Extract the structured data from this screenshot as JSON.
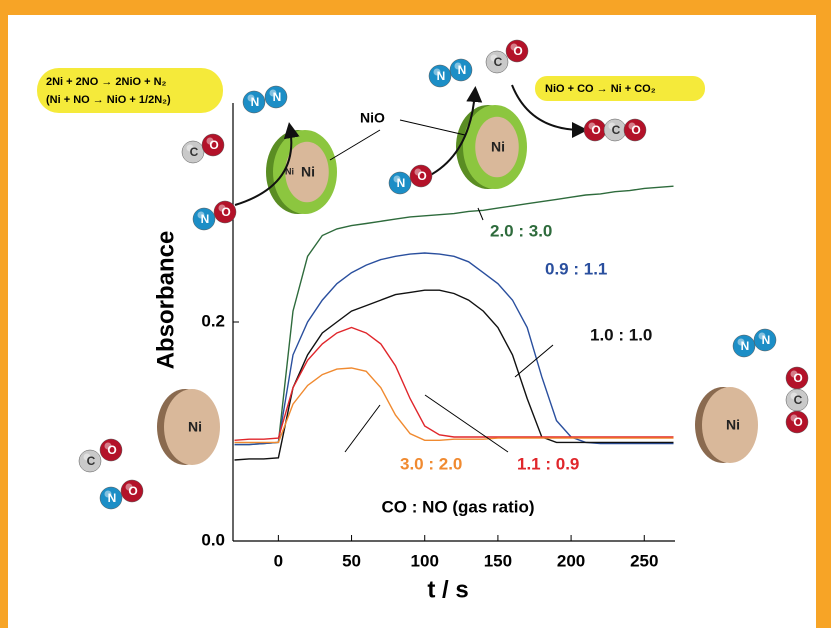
{
  "chart_data": {
    "type": "line",
    "x_label": "t / s",
    "y_label": "Absorbance",
    "xlim": [
      -31,
      271
    ],
    "ylim": [
      0,
      0.4
    ],
    "xticks": [
      0,
      50,
      100,
      150,
      200,
      250
    ],
    "yticks": [
      {
        "value": 0,
        "label": "0.0"
      },
      {
        "value": 0.2,
        "label": "0.2"
      }
    ],
    "x": [
      -30,
      -20,
      -10,
      0,
      10,
      20,
      30,
      40,
      50,
      60,
      70,
      80,
      90,
      100,
      110,
      120,
      130,
      140,
      150,
      160,
      170,
      180,
      190,
      200,
      210,
      220,
      230,
      240,
      250,
      260,
      270
    ],
    "series": [
      {
        "name": "2.0 : 3.0",
        "color": "#2e6b3c",
        "values": [
          0.088,
          0.088,
          0.089,
          0.09,
          0.21,
          0.26,
          0.279,
          0.285,
          0.288,
          0.29,
          0.292,
          0.294,
          0.296,
          0.297,
          0.298,
          0.299,
          0.301,
          0.302,
          0.304,
          0.306,
          0.308,
          0.31,
          0.312,
          0.314,
          0.316,
          0.317,
          0.319,
          0.32,
          0.322,
          0.323,
          0.324
        ]
      },
      {
        "name": "0.9 : 1.1",
        "color": "#2a4f9e",
        "values": [
          0.088,
          0.088,
          0.089,
          0.09,
          0.17,
          0.2,
          0.22,
          0.235,
          0.245,
          0.252,
          0.257,
          0.26,
          0.262,
          0.263,
          0.262,
          0.26,
          0.255,
          0.245,
          0.235,
          0.22,
          0.195,
          0.15,
          0.11,
          0.095,
          0.09,
          0.089,
          0.089,
          0.089,
          0.089,
          0.089,
          0.089
        ]
      },
      {
        "name": "1.0 : 1.0",
        "color": "#111111",
        "values": [
          0.074,
          0.075,
          0.075,
          0.076,
          0.14,
          0.17,
          0.19,
          0.2,
          0.21,
          0.215,
          0.22,
          0.225,
          0.227,
          0.229,
          0.229,
          0.226,
          0.22,
          0.21,
          0.195,
          0.17,
          0.13,
          0.095,
          0.09,
          0.09,
          0.09,
          0.09,
          0.09,
          0.09,
          0.09,
          0.09,
          0.09
        ]
      },
      {
        "name": "1.1 : 0.9",
        "color": "#e0262b",
        "values": [
          0.092,
          0.093,
          0.093,
          0.094,
          0.14,
          0.165,
          0.18,
          0.19,
          0.195,
          0.19,
          0.18,
          0.16,
          0.13,
          0.105,
          0.097,
          0.095,
          0.095,
          0.095,
          0.095,
          0.095,
          0.095,
          0.095,
          0.095,
          0.095,
          0.095,
          0.095,
          0.095,
          0.095,
          0.095,
          0.095,
          0.095
        ]
      },
      {
        "name": "3.0 : 2.0",
        "color": "#f08a30",
        "values": [
          0.09,
          0.09,
          0.09,
          0.09,
          0.125,
          0.142,
          0.152,
          0.157,
          0.158,
          0.155,
          0.14,
          0.115,
          0.098,
          0.092,
          0.092,
          0.093,
          0.093,
          0.093,
          0.094,
          0.094,
          0.094,
          0.094,
          0.094,
          0.094,
          0.094,
          0.094,
          0.094,
          0.094,
          0.094,
          0.094,
          0.094
        ]
      }
    ],
    "legend_title": "CO : NO (gas ratio)"
  },
  "equations": [
    "2Ni + 2NO → 2NiO + N₂",
    "(Ni + NO → NiO + 1/2N₂)",
    "NiO + CO → Ni + CO₂"
  ],
  "labels": {
    "nio": "NiO",
    "ni": "Ni",
    "n": "N",
    "o": "O",
    "c": "C"
  }
}
